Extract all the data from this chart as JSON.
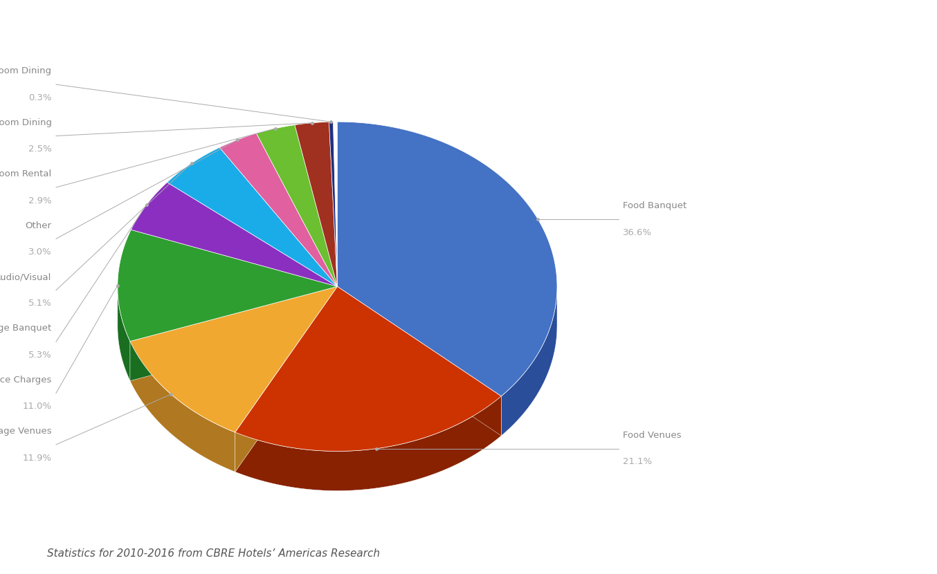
{
  "labels": [
    "Food Banquet",
    "Food Venues",
    "Beverage Venues",
    "Service Charges",
    "Baverage Banquet",
    "Audio/Visual",
    "Other",
    "Function Room Rental",
    "Food In-Room Dining",
    "Beverage In-Room Dining"
  ],
  "values": [
    36.6,
    21.1,
    11.9,
    11.0,
    5.3,
    5.1,
    3.0,
    2.9,
    2.5,
    0.3
  ],
  "colors": [
    "#4472C4",
    "#CC3300",
    "#F0A830",
    "#2E9E30",
    "#8B2FC0",
    "#1AACE8",
    "#E060A0",
    "#6BBF30",
    "#A03020",
    "#203080"
  ],
  "dark_colors": [
    "#2A4E9A",
    "#882200",
    "#B07820",
    "#1A6E20",
    "#5A1A80",
    "#0A7CA8",
    "#A04070",
    "#4A8F20",
    "#701810",
    "#101850"
  ],
  "startangle": 90,
  "footnote": "Statistics for 2010-2016 from CBRE Hotels’ Americas Research"
}
